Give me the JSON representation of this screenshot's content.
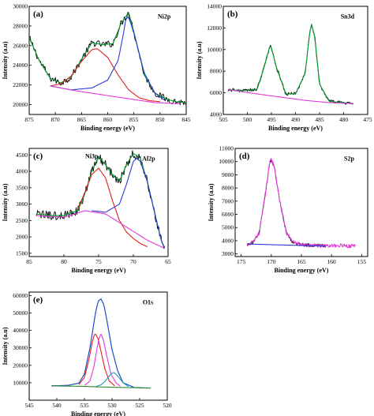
{
  "chart_data": [
    {
      "id": "a",
      "type": "line",
      "panel_label": "(a)",
      "element": "Ni2p",
      "xlabel": "Binding energy (eV)",
      "ylabel": "Intensity (a.u)",
      "xlim": [
        875,
        845
      ],
      "ylim": [
        19000,
        30000
      ],
      "xticks": [
        875,
        870,
        865,
        860,
        855,
        850,
        845
      ],
      "yticks": [
        20000,
        22000,
        24000,
        26000,
        28000,
        30000
      ],
      "series": [
        {
          "role": "raw",
          "color": "#000000",
          "noise": 350,
          "x": [
            875,
            873,
            871,
            869,
            867,
            865,
            863,
            861,
            859,
            857.5,
            856,
            855,
            853,
            851,
            849,
            847,
            845
          ],
          "values": [
            26800,
            24400,
            22700,
            22200,
            22800,
            24600,
            26300,
            26100,
            26200,
            28200,
            29400,
            27400,
            23000,
            21200,
            20600,
            20300,
            20200
          ]
        },
        {
          "role": "fit",
          "color": "#009a2e",
          "x": [
            875,
            873,
            871,
            869,
            867,
            865,
            863,
            861,
            859,
            857.5,
            856,
            855,
            853,
            851,
            849,
            847,
            845
          ],
          "values": [
            26800,
            24400,
            22700,
            22200,
            22800,
            24600,
            26300,
            26100,
            26200,
            28200,
            29400,
            27400,
            23000,
            21200,
            20600,
            20300,
            20200
          ]
        },
        {
          "role": "component",
          "color": "#e02020",
          "x": [
            871,
            869,
            867,
            865,
            863,
            862,
            860,
            858,
            856,
            854,
            852,
            850
          ],
          "values": [
            21900,
            22100,
            22900,
            24400,
            25600,
            25700,
            24800,
            23000,
            21500,
            20700,
            20400,
            20300
          ]
        },
        {
          "role": "component",
          "color": "#2a3ad8",
          "x": [
            871,
            867,
            863,
            860,
            858,
            857,
            856.5,
            856,
            855,
            853,
            851,
            849
          ],
          "values": [
            21900,
            21500,
            21700,
            22500,
            24500,
            27200,
            28800,
            28900,
            27300,
            23200,
            21200,
            20400
          ]
        },
        {
          "role": "background",
          "color": "#e23ad8",
          "x": [
            871,
            866,
            861,
            856,
            851,
            846
          ],
          "values": [
            21900,
            21400,
            21000,
            20600,
            20200,
            20100
          ]
        }
      ]
    },
    {
      "id": "b",
      "type": "line",
      "panel_label": "(b)",
      "element": "Sn3d",
      "xlabel": "Binding energy (eV)",
      "ylabel": "Intensity (a.u)",
      "xlim": [
        505,
        475
      ],
      "ylim": [
        4000,
        14000
      ],
      "xticks": [
        505,
        500,
        495,
        490,
        485,
        480,
        475
      ],
      "yticks": [
        4000,
        6000,
        8000,
        10000,
        12000,
        14000
      ],
      "series": [
        {
          "role": "raw",
          "color": "#000000",
          "noise": 150,
          "x": [
            504,
            501,
            498,
            496.5,
            495.2,
            494,
            492,
            490,
            488,
            487,
            486.7,
            486,
            485,
            483,
            480,
            478
          ],
          "values": [
            6300,
            6200,
            6300,
            8400,
            10500,
            8400,
            5900,
            5900,
            7800,
            11700,
            12400,
            11200,
            6800,
            5200,
            5100,
            5000
          ]
        },
        {
          "role": "fit",
          "color": "#009a2e",
          "x": [
            504,
            501,
            498,
            496.5,
            495.2,
            494,
            492,
            490,
            488,
            487,
            486.7,
            486,
            485,
            483,
            480,
            478
          ],
          "values": [
            6300,
            6200,
            6300,
            8400,
            10500,
            8400,
            5900,
            5900,
            7800,
            11700,
            12400,
            11200,
            6800,
            5200,
            5100,
            5000
          ]
        },
        {
          "role": "background",
          "color": "#e23ad8",
          "x": [
            504,
            498,
            493,
            488,
            483,
            478
          ],
          "values": [
            6300,
            5900,
            5600,
            5300,
            5100,
            5000
          ]
        }
      ]
    },
    {
      "id": "c",
      "type": "line",
      "panel_label": "(c)",
      "element": "Al2p",
      "annotation": "Ni3p",
      "xlabel": "Binding energy (eV)",
      "ylabel": "Intensity (a.u)",
      "xlim": [
        85,
        65
      ],
      "ylim": [
        1400,
        4700
      ],
      "xticks": [
        85,
        80,
        75,
        70,
        65
      ],
      "yticks": [
        1500,
        2000,
        2500,
        3000,
        3500,
        4000,
        4500
      ],
      "series": [
        {
          "role": "raw",
          "color": "#000000",
          "noise": 130,
          "x": [
            84,
            82,
            80,
            78,
            77,
            76,
            75,
            74,
            73,
            72,
            71,
            70,
            69,
            68,
            67,
            66,
            65.5
          ],
          "values": [
            2700,
            2650,
            2650,
            2800,
            3300,
            4000,
            4450,
            4200,
            3900,
            3700,
            4200,
            4550,
            4400,
            3700,
            2800,
            1900,
            1650
          ]
        },
        {
          "role": "fit",
          "color": "#009a2e",
          "x": [
            84,
            82,
            80,
            78,
            77,
            76,
            75,
            74,
            73,
            72,
            71,
            70,
            69,
            68,
            67,
            66,
            65.5
          ],
          "values": [
            2700,
            2650,
            2650,
            2800,
            3300,
            4000,
            4450,
            4200,
            3900,
            3700,
            4200,
            4550,
            4400,
            3700,
            2800,
            1900,
            1650
          ]
        },
        {
          "role": "component",
          "color": "#e02020",
          "x": [
            78,
            77,
            76,
            75,
            74,
            73,
            72,
            71,
            70,
            69,
            68
          ],
          "values": [
            2850,
            3350,
            3900,
            4100,
            3800,
            3100,
            2500,
            2150,
            1950,
            1800,
            1700
          ]
        },
        {
          "role": "component",
          "color": "#2a3ad8",
          "x": [
            76,
            74,
            72,
            71,
            70,
            69.5,
            69,
            68,
            67,
            66,
            65.5
          ],
          "values": [
            2800,
            2750,
            3000,
            3600,
            4300,
            4400,
            4300,
            3700,
            2800,
            1900,
            1650
          ]
        },
        {
          "role": "background",
          "color": "#e23ad8",
          "x": [
            84,
            80,
            77,
            74,
            71,
            68,
            65.5
          ],
          "values": [
            2650,
            2600,
            2800,
            2700,
            2300,
            1900,
            1650
          ]
        }
      ]
    },
    {
      "id": "d",
      "type": "line",
      "panel_label": "(d)",
      "element": "S2p",
      "xlabel": "Binding energy (eV)",
      "ylabel": "Intensity (a.u)",
      "xlim": [
        176,
        154
      ],
      "ylim": [
        2800,
        11000
      ],
      "xticks": [
        175,
        170,
        165,
        160,
        155
      ],
      "yticks": [
        3000,
        4000,
        5000,
        6000,
        7000,
        8000,
        9000,
        10000,
        11000
      ],
      "series": [
        {
          "role": "raw",
          "color": "#000000",
          "noise": 120,
          "x": [
            174,
            173,
            172,
            171,
            170.3,
            170,
            169.5,
            168.5,
            167.5,
            166.5,
            165,
            163,
            161
          ],
          "values": [
            3700,
            3900,
            4600,
            7500,
            9800,
            10200,
            9600,
            6800,
            4600,
            3900,
            3700,
            3650,
            3600
          ]
        },
        {
          "role": "fit",
          "color": "#e23ad8",
          "noise": 140,
          "x": [
            174,
            173,
            172,
            171,
            170.3,
            170,
            169.5,
            168.5,
            167.5,
            166.5,
            165,
            163,
            161,
            159,
            157,
            156
          ],
          "values": [
            3700,
            3900,
            4600,
            7500,
            9800,
            10200,
            9600,
            6800,
            4600,
            3900,
            3700,
            3650,
            3600,
            3650,
            3600,
            3650
          ]
        },
        {
          "role": "background",
          "color": "#2a3ad8",
          "x": [
            174,
            170,
            166,
            162,
            161
          ],
          "values": [
            3750,
            3700,
            3650,
            3600,
            3600
          ]
        }
      ]
    },
    {
      "id": "e",
      "type": "line",
      "panel_label": "(e)",
      "element": "O1s",
      "xlabel": "Binding energy (eV)",
      "ylabel": "Intensity (a.u)",
      "xlim": [
        545,
        520
      ],
      "ylim": [
        0,
        62000
      ],
      "xticks": [
        545,
        540,
        535,
        530,
        525,
        520
      ],
      "yticks": [
        10000,
        20000,
        30000,
        40000,
        50000,
        60000
      ],
      "series": [
        {
          "role": "raw",
          "color": "#000000",
          "x": [
            541,
            538,
            536,
            535,
            534,
            533,
            532.5,
            532,
            531.5,
            531,
            530,
            529,
            528,
            526,
            524,
            523
          ],
          "values": [
            8200,
            8500,
            9800,
            15000,
            30000,
            50000,
            57000,
            58000,
            55000,
            47000,
            29000,
            17000,
            10000,
            7300,
            7000,
            7000
          ]
        },
        {
          "role": "fit",
          "color": "#1f4fd8",
          "x": [
            541,
            538,
            536,
            535,
            534,
            533,
            532.5,
            532,
            531.5,
            531,
            530,
            529,
            528,
            526,
            524,
            523
          ],
          "values": [
            8200,
            8500,
            9800,
            15000,
            30000,
            50000,
            57000,
            58000,
            55000,
            47000,
            29000,
            17000,
            10000,
            7300,
            7000,
            7000
          ]
        },
        {
          "role": "component",
          "color": "#e02020",
          "x": [
            536,
            535,
            534.2,
            533.6,
            533.2,
            533,
            532.5,
            532,
            531.3,
            530.5,
            529.5
          ],
          "values": [
            9000,
            13000,
            23000,
            33000,
            37500,
            38000,
            35000,
            28000,
            18000,
            11000,
            8200
          ]
        },
        {
          "role": "component",
          "color": "#e23ad8",
          "x": [
            535,
            534,
            533.3,
            532.7,
            532.3,
            532,
            531.6,
            531,
            530.2,
            529.3,
            528.5
          ],
          "values": [
            8500,
            11000,
            19000,
            30000,
            36000,
            38000,
            35000,
            26000,
            15000,
            10000,
            8000
          ]
        },
        {
          "role": "component",
          "color": "#1fa0b0",
          "x": [
            533,
            532,
            531.2,
            530.5,
            530,
            529.6,
            529,
            528,
            527
          ],
          "values": [
            7800,
            8800,
            11000,
            14000,
            15500,
            15800,
            14000,
            10000,
            7800
          ]
        },
        {
          "role": "background",
          "color": "#2a8a2a",
          "x": [
            541,
            536,
            532,
            528,
            523
          ],
          "values": [
            8200,
            8000,
            7600,
            7300,
            7000
          ]
        }
      ]
    }
  ]
}
